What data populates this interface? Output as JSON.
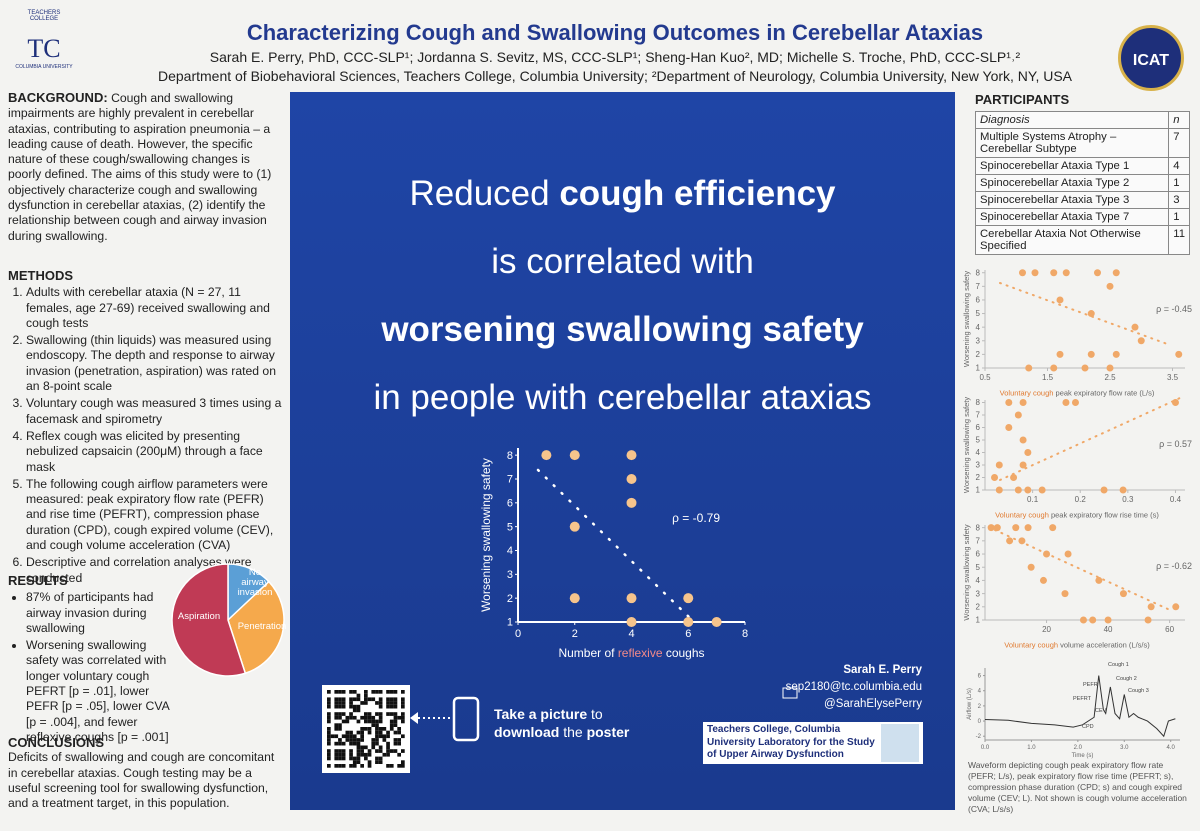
{
  "header": {
    "logo_left": {
      "top": "TEACHERS COLLEGE",
      "mark": "TC",
      "bottom": "COLUMBIA UNIVERSITY"
    },
    "title": "Characterizing Cough and Swallowing Outcomes in Cerebellar Ataxias",
    "authors": "Sarah E. Perry, PhD, CCC-SLP¹; Jordanna S. Sevitz, MS, CCC-SLP¹; Sheng-Han Kuo², MD; Michelle S. Troche, PhD, CCC-SLP¹˒²",
    "affiliations": "Department of Biobehavioral Sciences, Teachers College, Columbia University; ²Department of Neurology, Columbia University, New York, NY, USA",
    "logo_right": "ICAT"
  },
  "background": {
    "heading": "BACKGROUND:",
    "text": "Cough and swallowing impairments are highly prevalent in cerebellar ataxias, contributing to aspiration pneumonia – a leading cause of death. However, the specific nature of these cough/swallowing changes is poorly defined. The aims of this study were to (1) objectively characterize cough and swallowing dysfunction in cerebellar ataxias, (2) identify the relationship between cough and airway invasion during swallowing."
  },
  "methods": {
    "heading": "METHODS",
    "items": [
      "Adults with cerebellar ataxia (N = 27, 11 females, age 27-69) received swallowing and cough tests",
      "Swallowing (thin liquids) was measured using endoscopy. The depth and response to airway invasion (penetration, aspiration) was rated on an 8-point scale",
      "Voluntary cough was measured 3 times using a facemask and spirometry",
      "Reflex cough was elicited by presenting nebulized capsaicin (200μM) through a face mask",
      "The following cough airflow parameters were measured: peak expiratory flow rate (PEFR) and rise time (PEFRT), compression phase duration (CPD), cough expired volume (CEV), and cough volume acceleration (CVA)",
      "Descriptive and correlation analyses were conducted"
    ]
  },
  "results": {
    "heading": "RESULTS",
    "items": [
      "87% of participants had airway invasion during swallowing",
      "Worsening swallowing safety was correlated with longer voluntary cough PEFRT [p = .01], lower PEFR [p = .05], lower CVA [p = .004], and fewer reflexive coughs [p = .001]"
    ]
  },
  "conclusions": {
    "heading": "CONCLUSIONS",
    "text": "Deficits of swallowing and cough are concomitant in cerebellar ataxias. Cough testing may be a useful screening tool for swallowing dysfunction, and a treatment target, in this population."
  },
  "center": {
    "headline": [
      [
        {
          "text": "Reduced ",
          "bold": false
        },
        {
          "text": "cough efficiency",
          "bold": true
        }
      ],
      [
        {
          "text": "is correlated with",
          "bold": false
        }
      ],
      [
        {
          "text": "worsening swallowing safety",
          "bold": true
        }
      ],
      [
        {
          "text": "in people with cerebellar ataxias",
          "bold": false
        }
      ]
    ],
    "name": "Sarah E. Perry",
    "email": "sep2180@tc.columbia.edu",
    "twitter": "@SarahElysePerry",
    "cta": [
      {
        "text": "Take a picture",
        "bold": true
      },
      {
        "text": " to ",
        "bold": false
      },
      {
        "text": "download",
        "bold": true
      },
      {
        "text": " the ",
        "bold": false
      },
      {
        "text": "poster",
        "bold": true
      }
    ],
    "lab": "Teachers College, Columbia University Laboratory for the Study of Upper Airway Dysfunction"
  },
  "participants": {
    "heading": "PARTICIPANTS",
    "columns": [
      "Diagnosis",
      "n"
    ],
    "rows": [
      [
        "Multiple Systems Atrophy – Cerebellar Subtype",
        "7"
      ],
      [
        "Spinocerebellar Ataxia Type 1",
        "4"
      ],
      [
        "Spinocerebellar Ataxia Type 2",
        "1"
      ],
      [
        "Spinocerebellar Ataxia Type 3",
        "3"
      ],
      [
        "Spinocerebellar Ataxia Type 7",
        "1"
      ],
      [
        "Cerebellar Ataxia Not Otherwise Specified",
        "11"
      ]
    ]
  },
  "caption": "Waveform depicting cough peak expiratory flow rate (PEFR; L/s), peak expiratory flow rise time (PEFRT; s), compression phase duration (CPD; s) and cough expired volume (CEV; L). Not shown is cough volume acceleration (CVA; L/s/s)",
  "chart_data": [
    {
      "type": "scatter",
      "color": "#f6c48c",
      "x": [
        1,
        2,
        4,
        4,
        4,
        2,
        2,
        4,
        4,
        6,
        7,
        6
      ],
      "y": [
        8,
        8,
        8,
        7,
        6,
        5,
        2,
        2,
        1,
        1,
        1,
        2
      ],
      "xlim": [
        0,
        8
      ],
      "ylim": [
        1,
        8.3
      ],
      "xticks": [
        0,
        2,
        4,
        6,
        8
      ],
      "yticks": [
        1,
        2,
        3,
        4,
        5,
        6,
        7,
        8
      ],
      "ylabel": "Worsening swallowing safety",
      "xlabel": [
        {
          "text": "Number of ",
          "highlight": false
        },
        {
          "text": "reflexive",
          "highlight": true
        },
        {
          "text": " coughs",
          "highlight": false
        }
      ],
      "annotation": "ρ = -0.79"
    },
    {
      "type": "scatter",
      "color": "#f0a868",
      "x": [
        1.1,
        1.3,
        1.6,
        1.8,
        2.3,
        2.6,
        2.5,
        1.7,
        2.2,
        2.9,
        3.0,
        1.7,
        2.2,
        2.6,
        3.6,
        1.2,
        1.6,
        2.1,
        2.5
      ],
      "y": [
        8,
        8,
        8,
        8,
        8,
        8,
        7,
        6,
        5,
        4,
        3,
        2,
        2,
        2,
        2,
        1,
        1,
        1,
        1
      ],
      "xlim": [
        0.5,
        3.7
      ],
      "ylim": [
        1,
        8.2
      ],
      "xticks": [
        0.5,
        1.5,
        2.5,
        3.5
      ],
      "yticks": [
        1,
        2,
        3,
        4,
        5,
        6,
        7,
        8
      ],
      "ylabel": "Worsening swallowing safety",
      "xlabel": [
        {
          "text": "Voluntary cough",
          "highlight": true
        },
        {
          "text": " peak expiratory flow rate (L/s)",
          "highlight": false
        }
      ],
      "annotation": "ρ = -0.45"
    },
    {
      "type": "scatter",
      "color": "#f0a868",
      "x": [
        0.05,
        0.08,
        0.17,
        0.19,
        0.4,
        0.07,
        0.05,
        0.08,
        0.09,
        0.03,
        0.08,
        0.02,
        0.06,
        0.03,
        0.07,
        0.09,
        0.12,
        0.25,
        0.29
      ],
      "y": [
        8,
        8,
        8,
        8,
        8,
        7,
        6,
        5,
        4,
        3,
        3,
        2,
        2,
        1,
        1,
        1,
        1,
        1,
        1
      ],
      "xlim": [
        0,
        0.42
      ],
      "ylim": [
        1,
        8.2
      ],
      "xticks": [
        0.1,
        0.2,
        0.3,
        0.4
      ],
      "yticks": [
        1,
        2,
        3,
        4,
        5,
        6,
        7,
        8
      ],
      "ylabel": "Worsening swallowing safety",
      "xlabel": [
        {
          "text": "Voluntary cough",
          "highlight": true
        },
        {
          "text": " peak expiratory flow rise time (s)",
          "highlight": false
        }
      ],
      "annotation": "ρ = 0.57"
    },
    {
      "type": "scatter",
      "color": "#f0a868",
      "x": [
        2,
        4,
        10,
        14,
        22,
        8,
        12,
        20,
        27,
        15,
        19,
        37,
        26,
        45,
        54,
        62,
        32,
        35,
        40,
        53
      ],
      "y": [
        8,
        8,
        8,
        8,
        8,
        7,
        7,
        6,
        6,
        5,
        4,
        4,
        3,
        3,
        2,
        2,
        1,
        1,
        1,
        1
      ],
      "xlim": [
        0,
        65
      ],
      "ylim": [
        1,
        8.2
      ],
      "xticks": [
        20,
        40,
        60
      ],
      "yticks": [
        1,
        2,
        3,
        4,
        5,
        6,
        7,
        8
      ],
      "ylabel": "Worsening swallowing safety",
      "xlabel": [
        {
          "text": "Voluntary cough",
          "highlight": true
        },
        {
          "text": " volume acceleration (L/s/s)",
          "highlight": false
        }
      ],
      "annotation": "ρ = -0.62"
    },
    {
      "type": "pie",
      "categories": [
        "No airway invasion",
        "Penetration",
        "Aspiration"
      ],
      "values": [
        13,
        32,
        55
      ],
      "colors": [
        "#5b9fd6",
        "#f5a94c",
        "#c03a55"
      ]
    },
    {
      "type": "line",
      "color": "#333333",
      "x": [
        0,
        0.5,
        1.0,
        1.5,
        1.9,
        2.1,
        2.35,
        2.45,
        2.55,
        2.6,
        2.7,
        2.8,
        2.9,
        3.0,
        3.1,
        3.2,
        3.3,
        3.5,
        3.7,
        3.85,
        3.95,
        4.1
      ],
      "values": [
        0.2,
        0.1,
        -0.3,
        -0.5,
        -0.8,
        -0.5,
        0.5,
        6,
        1.5,
        1,
        4.5,
        1,
        0.3,
        3.5,
        0.5,
        1,
        0.5,
        0,
        -1,
        -2,
        0,
        0.3
      ],
      "xlim": [
        0,
        4.2
      ],
      "ylim": [
        -2.5,
        7
      ],
      "xticks": [
        {
          "value": 0,
          "label": "0.0"
        },
        {
          "value": 1,
          "label": "1.0"
        },
        {
          "value": 2,
          "label": "2.0"
        },
        {
          "value": 3,
          "label": "3.0"
        },
        {
          "value": 4,
          "label": "4.0"
        }
      ],
      "yticks": [
        -2,
        0,
        2,
        4,
        6
      ],
      "xlabel": "Time (s)",
      "ylabel": "Airflow (L/s)",
      "annotations": [
        "PEFR",
        "Cough 1",
        "Cough 2",
        "Cough 3",
        "PEFRT",
        "CEV",
        "CPD"
      ]
    }
  ]
}
